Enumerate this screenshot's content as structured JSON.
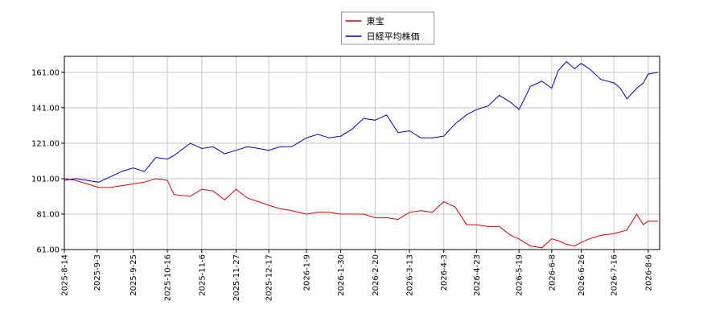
{
  "chart_data": {
    "type": "line",
    "x": [
      "2025-08-14",
      "2025-08-21",
      "2025-08-28",
      "2025-09-04",
      "2025-09-11",
      "2025-09-18",
      "2025-09-25",
      "2025-10-02",
      "2025-10-09",
      "2025-10-16",
      "2025-10-20",
      "2025-10-30",
      "2025-11-06",
      "2025-11-13",
      "2025-11-20",
      "2025-11-27",
      "2025-12-04",
      "2025-12-11",
      "2025-12-17",
      "2025-12-24",
      "2025-12-31",
      "2026-01-09",
      "2026-01-16",
      "2026-01-23",
      "2026-01-30",
      "2026-02-06",
      "2026-02-13",
      "2026-02-20",
      "2026-02-27",
      "2026-03-06",
      "2026-03-13",
      "2026-03-20",
      "2026-03-27",
      "2026-04-03",
      "2026-04-10",
      "2026-04-17",
      "2026-04-23",
      "2026-04-30",
      "2026-05-07",
      "2026-05-14",
      "2026-05-19",
      "2026-05-26",
      "2026-06-02",
      "2026-06-08",
      "2026-06-12",
      "2026-06-17",
      "2026-06-22",
      "2026-06-26",
      "2026-07-01",
      "2026-07-08",
      "2026-07-16",
      "2026-07-20",
      "2026-07-24",
      "2026-07-30",
      "2026-08-03",
      "2026-08-06",
      "2026-08-12"
    ],
    "series": [
      {
        "name": "東宝",
        "color": "#dd0000",
        "values": [
          101,
          100,
          98,
          96,
          96,
          97,
          98,
          99,
          101,
          100,
          92,
          91,
          95,
          94,
          89,
          95,
          90,
          88,
          86,
          84,
          83,
          81,
          82,
          82,
          81,
          81,
          81,
          79,
          79,
          78,
          82,
          83,
          82,
          88,
          85,
          75,
          75,
          74,
          74,
          69,
          67,
          63,
          62,
          67,
          66,
          64,
          63,
          65,
          67,
          69,
          70,
          71,
          72,
          81,
          75,
          77,
          77
        ]
      },
      {
        "name": "日経平均株価",
        "color": "#0000cc",
        "values": [
          100,
          101,
          100,
          99,
          102,
          105,
          107,
          105,
          113,
          112,
          114,
          121,
          118,
          119,
          115,
          117,
          119,
          118,
          117,
          119,
          119,
          124,
          126,
          124,
          125,
          129,
          135,
          134,
          137,
          127,
          128,
          124,
          124,
          125,
          132,
          137,
          140,
          142,
          148,
          144,
          140,
          153,
          156,
          152,
          162,
          167,
          163,
          166,
          163,
          157,
          155,
          152,
          146,
          152,
          155,
          160,
          161
        ]
      }
    ],
    "xlim": [
      "2025-08-14",
      "2026-08-13"
    ],
    "xticks": [
      {
        "value": "2025-08-14",
        "label": "2025-8-14"
      },
      {
        "value": "2025-09-03",
        "label": "2025-9-3"
      },
      {
        "value": "2025-09-25",
        "label": "2025-9-25"
      },
      {
        "value": "2025-10-16",
        "label": "2025-10-16"
      },
      {
        "value": "2025-11-06",
        "label": "2025-11-6"
      },
      {
        "value": "2025-11-27",
        "label": "2025-11-27"
      },
      {
        "value": "2025-12-17",
        "label": "2025-12-17"
      },
      {
        "value": "2026-01-09",
        "label": "2026-1-9"
      },
      {
        "value": "2026-01-30",
        "label": "2026-1-30"
      },
      {
        "value": "2026-02-20",
        "label": "2026-2-20"
      },
      {
        "value": "2026-03-13",
        "label": "2026-3-13"
      },
      {
        "value": "2026-04-03",
        "label": "2026-4-3"
      },
      {
        "value": "2026-04-23",
        "label": "2026-4-23"
      },
      {
        "value": "2026-05-19",
        "label": "2026-5-19"
      },
      {
        "value": "2026-06-08",
        "label": "2026-6-8"
      },
      {
        "value": "2026-06-26",
        "label": "2026-6-26"
      },
      {
        "value": "2026-07-16",
        "label": "2026-7-16"
      },
      {
        "value": "2026-08-06",
        "label": "2026-8-6"
      }
    ],
    "ylim": [
      61,
      170
    ],
    "yticks": [
      {
        "value": 61,
        "label": "61.00"
      },
      {
        "value": 81,
        "label": "81.00"
      },
      {
        "value": 101,
        "label": "101.00"
      },
      {
        "value": 121,
        "label": "121.00"
      },
      {
        "value": 141,
        "label": "141.00"
      },
      {
        "value": 161,
        "label": "161.00"
      }
    ],
    "grid": true,
    "legend": "upper center"
  }
}
